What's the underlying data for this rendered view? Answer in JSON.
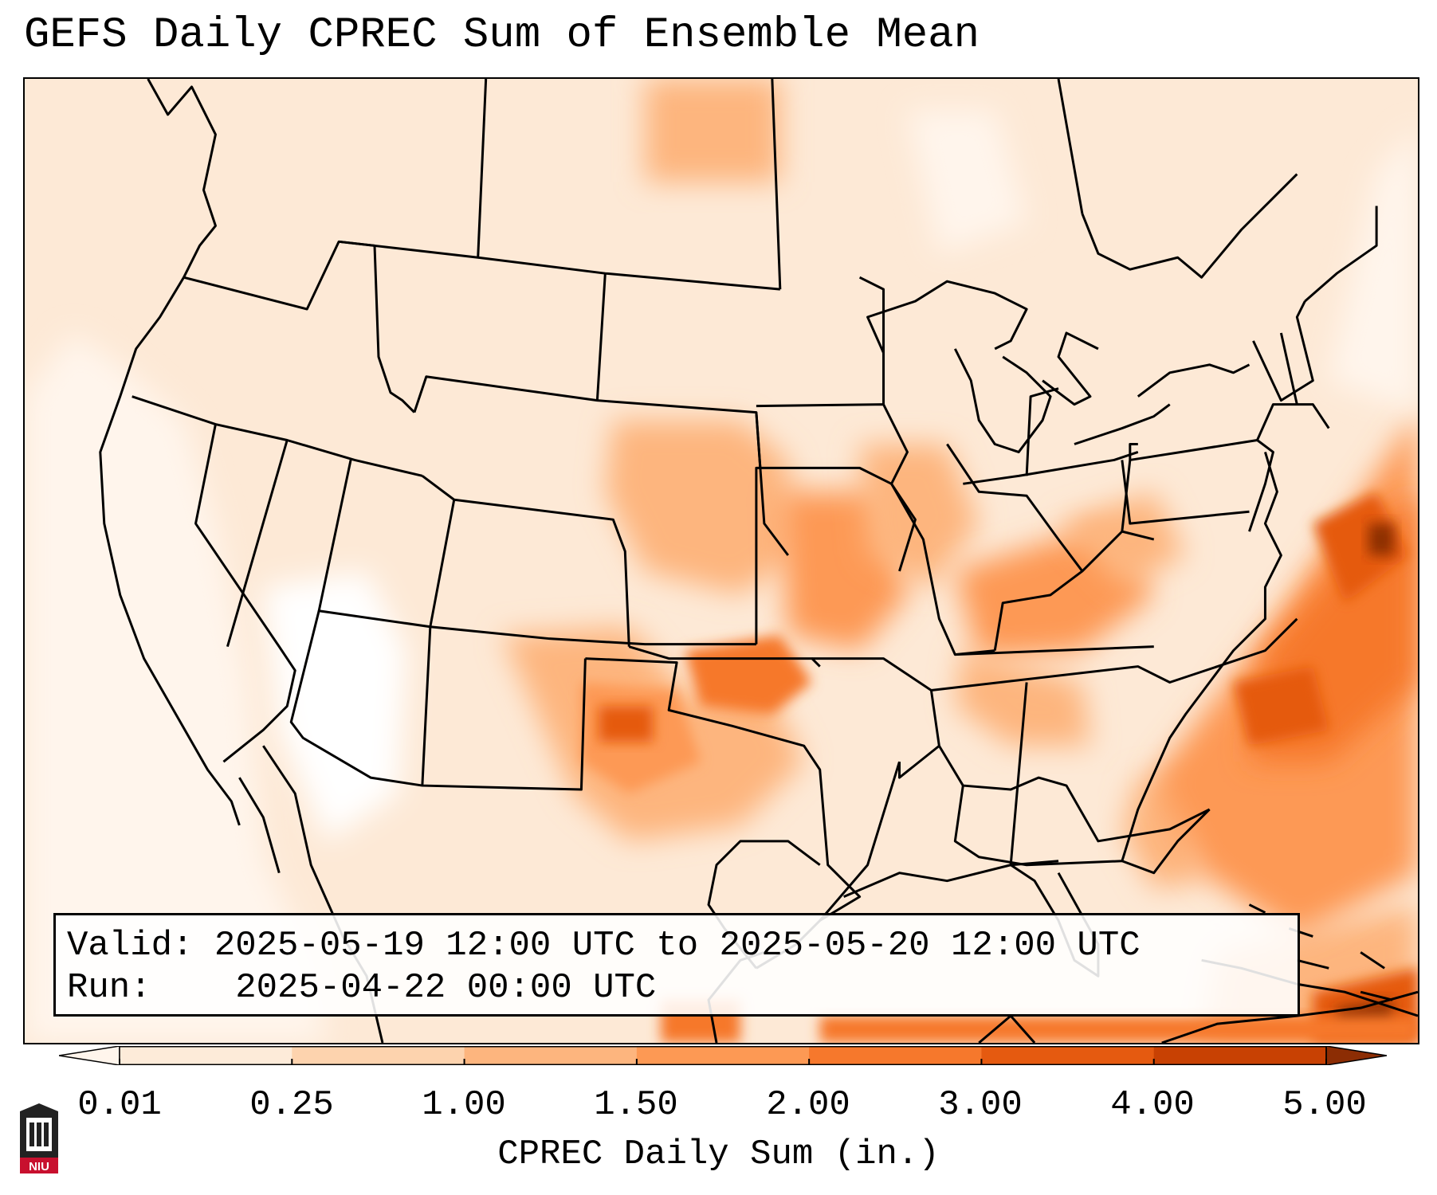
{
  "title": "GEFS Daily CPREC Sum of Ensemble Mean",
  "info": {
    "valid_label": "Valid:",
    "valid_value": "2025-05-19 12:00 UTC to 2025-05-20 12:00 UTC",
    "run_label": "Run:",
    "run_value": "2025-04-22 00:00 UTC"
  },
  "colorbar": {
    "label": "CPREC Daily Sum (in.)",
    "ticks": [
      "0.01",
      "0.25",
      "1.00",
      "1.50",
      "2.00",
      "3.00",
      "4.00",
      "5.00"
    ],
    "colors": [
      "#fdebd9",
      "#fdd3ae",
      "#fdb57e",
      "#fd9954",
      "#f6782c",
      "#e55a10",
      "#c84103"
    ],
    "under_color": "#fff5ec",
    "over_color": "#8c2d04"
  },
  "map": {
    "projection": "Lambert conformal, CONUS",
    "field": "GEFS ensemble mean convective precipitation, daily sum",
    "features": [
      "state borders",
      "coastlines",
      "Great Lakes",
      "Mexico",
      "Cuba",
      "Bahamas"
    ],
    "notable_maxima": [
      "western Atlantic off the Mid-Atlantic coast",
      "north-central Texas",
      "Oklahoma",
      "Cuba / Bahamas"
    ]
  },
  "logo": {
    "text": "NIU"
  }
}
